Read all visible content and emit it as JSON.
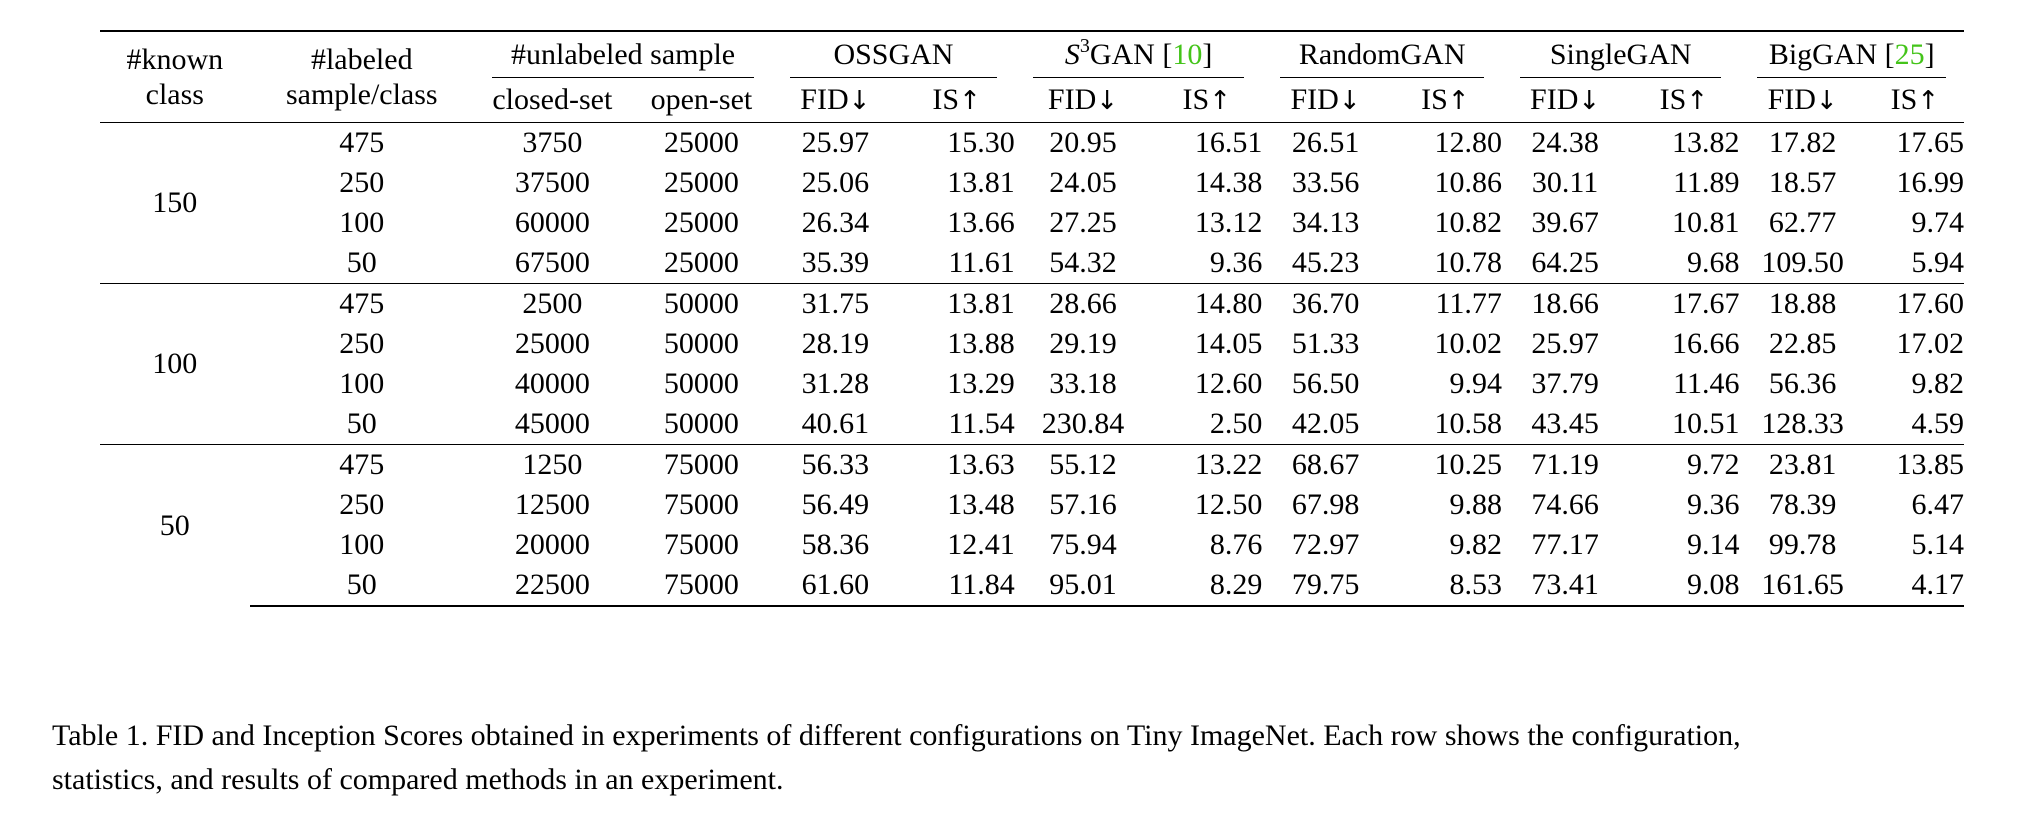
{
  "table": {
    "headers": {
      "known_class": [
        "#known",
        "class"
      ],
      "labeled": [
        "#labeled",
        "sample/class"
      ],
      "unlabeled": "#unlabeled sample",
      "closed_set": "closed-set",
      "open_set": "open-set",
      "methods": [
        {
          "name": "OSSGAN",
          "prefix": "",
          "sup": "",
          "ref": ""
        },
        {
          "name": "GAN",
          "prefix": "S",
          "sup": "3",
          "ref": "10"
        },
        {
          "name": "RandomGAN",
          "prefix": "",
          "sup": "",
          "ref": ""
        },
        {
          "name": "SingleGAN",
          "prefix": "",
          "sup": "",
          "ref": ""
        },
        {
          "name": "BigGAN",
          "prefix": "",
          "sup": "",
          "ref": "25"
        }
      ],
      "fid": "FID",
      "is": "IS",
      "down_arrow": "↓",
      "up_arrow": "↑"
    },
    "groups": [
      {
        "known": "150",
        "rows": [
          {
            "labeled": "475",
            "closed": "3750",
            "open": "25000",
            "vals": [
              "25.97",
              "15.30",
              "20.95",
              "16.51",
              "26.51",
              "12.80",
              "24.38",
              "13.82",
              "17.82",
              "17.65"
            ],
            "bold": [
              8,
              9
            ]
          },
          {
            "labeled": "250",
            "closed": "37500",
            "open": "25000",
            "vals": [
              "25.06",
              "13.81",
              "24.05",
              "14.38",
              "33.56",
              "10.86",
              "30.11",
              "11.89",
              "18.57",
              "16.99"
            ],
            "bold": [
              8,
              9
            ]
          },
          {
            "labeled": "100",
            "closed": "60000",
            "open": "25000",
            "vals": [
              "26.34",
              "13.66",
              "27.25",
              "13.12",
              "34.13",
              "10.82",
              "39.67",
              "10.81",
              "62.77",
              "9.74"
            ],
            "bold": [
              0,
              1
            ]
          },
          {
            "labeled": "50",
            "closed": "67500",
            "open": "25000",
            "vals": [
              "35.39",
              "11.61",
              "54.32",
              "9.36",
              "45.23",
              "10.78",
              "64.25",
              "9.68",
              "109.50",
              "5.94"
            ],
            "bold": [
              0,
              1
            ]
          }
        ]
      },
      {
        "known": "100",
        "rows": [
          {
            "labeled": "475",
            "closed": "2500",
            "open": "50000",
            "vals": [
              "31.75",
              "13.81",
              "28.66",
              "14.80",
              "36.70",
              "11.77",
              "18.66",
              "17.67",
              "18.88",
              "17.60"
            ],
            "bold": [
              6,
              7
            ]
          },
          {
            "labeled": "250",
            "closed": "25000",
            "open": "50000",
            "vals": [
              "28.19",
              "13.88",
              "29.19",
              "14.05",
              "51.33",
              "10.02",
              "25.97",
              "16.66",
              "22.85",
              "17.02"
            ],
            "bold": [
              8,
              9
            ]
          },
          {
            "labeled": "100",
            "closed": "40000",
            "open": "50000",
            "vals": [
              "31.28",
              "13.29",
              "33.18",
              "12.60",
              "56.50",
              "9.94",
              "37.79",
              "11.46",
              "56.36",
              "9.82"
            ],
            "bold": [
              0,
              1
            ]
          },
          {
            "labeled": "50",
            "closed": "45000",
            "open": "50000",
            "vals": [
              "40.61",
              "11.54",
              "230.84",
              "2.50",
              "42.05",
              "10.58",
              "43.45",
              "10.51",
              "128.33",
              "4.59"
            ],
            "bold": [
              0,
              1
            ]
          }
        ]
      },
      {
        "known": "50",
        "rows": [
          {
            "labeled": "475",
            "closed": "1250",
            "open": "75000",
            "vals": [
              "56.33",
              "13.63",
              "55.12",
              "13.22",
              "68.67",
              "10.25",
              "71.19",
              "9.72",
              "23.81",
              "13.85"
            ],
            "bold": [
              8,
              9
            ]
          },
          {
            "labeled": "250",
            "closed": "12500",
            "open": "75000",
            "vals": [
              "56.49",
              "13.48",
              "57.16",
              "12.50",
              "67.98",
              "9.88",
              "74.66",
              "9.36",
              "78.39",
              "6.47"
            ],
            "bold": [
              0,
              1
            ]
          },
          {
            "labeled": "100",
            "closed": "20000",
            "open": "75000",
            "vals": [
              "58.36",
              "12.41",
              "75.94",
              "8.76",
              "72.97",
              "9.82",
              "77.17",
              "9.14",
              "99.78",
              "5.14"
            ],
            "bold": [
              0,
              1
            ]
          },
          {
            "labeled": "50",
            "closed": "22500",
            "open": "75000",
            "vals": [
              "61.60",
              "11.84",
              "95.01",
              "8.29",
              "79.75",
              "8.53",
              "73.41",
              "9.08",
              "161.65",
              "4.17"
            ],
            "bold": [
              0,
              1
            ]
          }
        ]
      }
    ]
  },
  "caption": {
    "line1": "Table 1. FID and Inception Scores obtained in experiments of different configurations on Tiny ImageNet. Each row shows the configuration,",
    "line2": "statistics, and results of compared methods in an experiment."
  }
}
